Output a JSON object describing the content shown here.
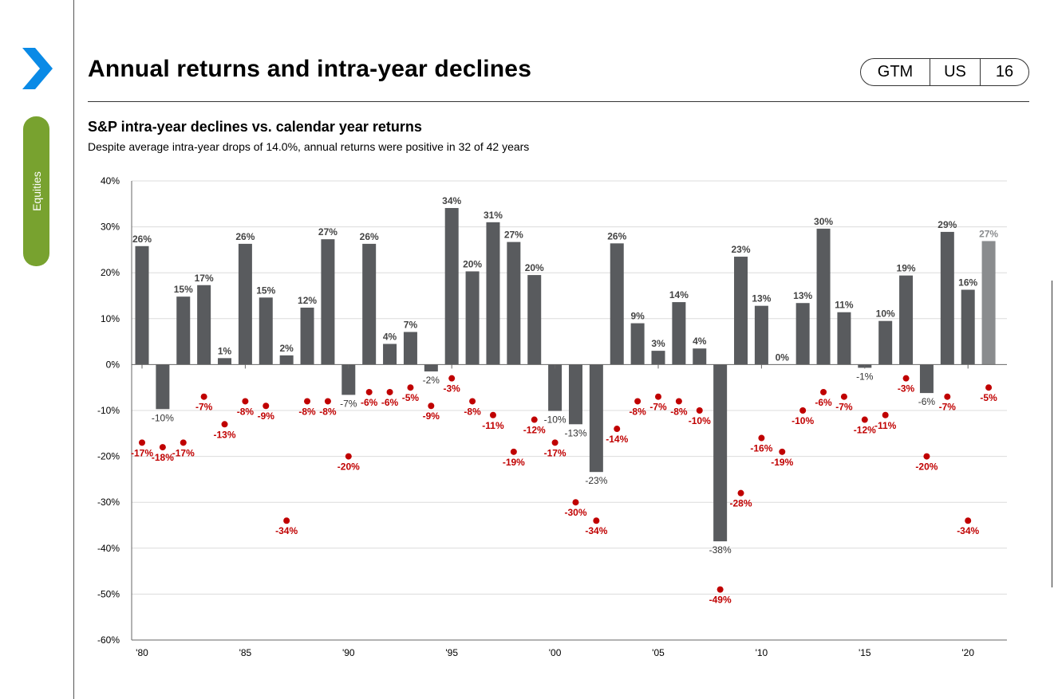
{
  "header": {
    "title": "Annual returns and intra-year declines",
    "badge": [
      "GTM",
      "US",
      "16"
    ],
    "side_tab": "Equities"
  },
  "colors": {
    "bar": "#595b5e",
    "bar_highlight": "#8a8c8e",
    "decline_dot": "#c00000",
    "tab_green": "#78a22f",
    "chevron_blue": "#0a8ae6"
  },
  "chart_data": {
    "type": "bar",
    "title": "S&P intra-year declines vs. calendar year returns",
    "subtitle": "Despite average intra-year drops of 14.0%, annual returns were positive in 32 of 42 years",
    "xlabel": "",
    "ylabel": "",
    "ylim": [
      -60,
      40
    ],
    "yticks": [
      -60,
      -50,
      -40,
      -30,
      -20,
      -10,
      0,
      10,
      20,
      30,
      40
    ],
    "ytick_labels": [
      "-60%",
      "-50%",
      "-40%",
      "-30%",
      "-20%",
      "-10%",
      "0%",
      "10%",
      "20%",
      "30%",
      "40%"
    ],
    "x": [
      1980,
      1981,
      1982,
      1983,
      1984,
      1985,
      1986,
      1987,
      1988,
      1989,
      1990,
      1991,
      1992,
      1993,
      1994,
      1995,
      1996,
      1997,
      1998,
      1999,
      2000,
      2001,
      2002,
      2003,
      2004,
      2005,
      2006,
      2007,
      2008,
      2009,
      2010,
      2011,
      2012,
      2013,
      2014,
      2015,
      2016,
      2017,
      2018,
      2019,
      2020,
      2021
    ],
    "xtick_years": [
      1980,
      1985,
      1990,
      1995,
      2000,
      2005,
      2010,
      2015,
      2020
    ],
    "xtick_labels": [
      "'80",
      "'85",
      "'90",
      "'95",
      "'00",
      "'05",
      "'10",
      "'15",
      "'20"
    ],
    "series": [
      {
        "kind": "bar",
        "values": [
          25.8,
          -9.7,
          14.8,
          17.3,
          1.4,
          26.3,
          14.6,
          2.0,
          12.4,
          27.3,
          -6.6,
          26.3,
          4.5,
          7.1,
          -1.5,
          34.1,
          20.3,
          31.0,
          26.7,
          19.5,
          -10.1,
          -13.0,
          -23.4,
          26.4,
          9.0,
          3.0,
          13.6,
          3.5,
          -38.5,
          23.5,
          12.8,
          0.0,
          13.4,
          29.6,
          11.4,
          -0.7,
          9.5,
          19.4,
          -6.2,
          28.9,
          16.3,
          26.9
        ],
        "labels": [
          "26%",
          "-10%",
          "15%",
          "17%",
          "1%",
          "26%",
          "15%",
          "2%",
          "12%",
          "27%",
          "-7%",
          "26%",
          "4%",
          "7%",
          "-2%",
          "34%",
          "20%",
          "31%",
          "27%",
          "20%",
          "-10%",
          "-13%",
          "-23%",
          "26%",
          "9%",
          "3%",
          "14%",
          "4%",
          "-38%",
          "23%",
          "13%",
          "0%",
          "13%",
          "30%",
          "11%",
          "-1%",
          "10%",
          "19%",
          "-6%",
          "29%",
          "16%",
          "27%"
        ],
        "highlight_last": true
      },
      {
        "kind": "scatter",
        "values": [
          -17,
          -18,
          -17,
          -7,
          -13,
          -8,
          -9,
          -34,
          -8,
          -8,
          -20,
          -6,
          -6,
          -5,
          -9,
          -3,
          -8,
          -11,
          -19,
          -12,
          -17,
          -30,
          -34,
          -14,
          -8,
          -7,
          -8,
          -10,
          -49,
          -28,
          -16,
          -19,
          -10,
          -6,
          -7,
          -12,
          -11,
          -3,
          -20,
          -7,
          -34,
          -5
        ],
        "labels": [
          "-17%",
          "-18%",
          "-17%",
          "-7%",
          "-13%",
          "-8%",
          "-9%",
          "-34%",
          "-8%",
          "-8%",
          "-20%",
          "-6%",
          "-6%",
          "-5%",
          "-9%",
          "-3%",
          "-8%",
          "-11%",
          "-19%",
          "-12%",
          "-17%",
          "-30%",
          "-34%",
          "-14%",
          "-8%",
          "-7%",
          "-8%",
          "-10%",
          "-49%",
          "-28%",
          "-16%",
          "-19%",
          "-10%",
          "-6%",
          "-7%",
          "-12%",
          "-11%",
          "-3%",
          "-20%",
          "-7%",
          "-34%",
          "-5%"
        ]
      }
    ],
    "grid": true,
    "legend": "none"
  }
}
